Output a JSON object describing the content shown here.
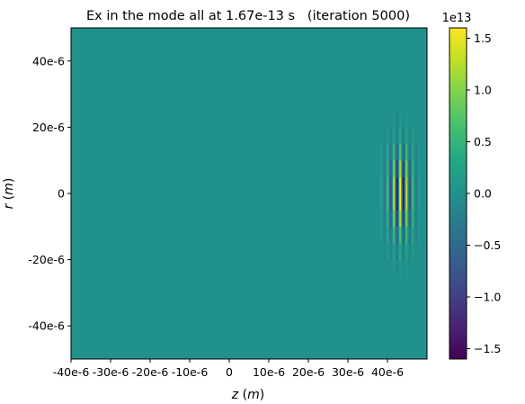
{
  "chart_data": {
    "type": "heatmap",
    "title": "Ex in the mode all at 1.67e-13 s   (iteration 5000)",
    "xlabel": "z (m)",
    "ylabel": "r (m)",
    "xlim": [
      -40,
      50
    ],
    "ylim": [
      -50,
      50
    ],
    "x_ticks": [
      -40,
      -30,
      -20,
      -10,
      0,
      10,
      20,
      30,
      40
    ],
    "x_tick_labels": [
      "-40e-6",
      "-30e-6",
      "-20e-6",
      "-10e-6",
      "0",
      "10e-6",
      "20e-6",
      "30e-6",
      "40e-6"
    ],
    "y_ticks": [
      40,
      20,
      0,
      -20,
      -40
    ],
    "y_tick_labels": [
      "40e-6",
      "20e-6",
      "0",
      "-20e-6",
      "-40e-6"
    ],
    "colorbar": {
      "colormap": "viridis",
      "range": [
        -1.6,
        1.6
      ],
      "offset_label": "1e13",
      "ticks": [
        1.5,
        1.0,
        0.5,
        0.0,
        -0.5,
        -1.0,
        -1.5
      ],
      "tick_labels": [
        "1.5",
        "1.0",
        "0.5",
        "0.0",
        "−0.5",
        "−1.0",
        "−1.5"
      ]
    },
    "background_color": "#21918c",
    "pulse": {
      "center_z": 43,
      "center_r": 0,
      "z_extent": [
        35,
        48
      ],
      "r_extent": [
        -30,
        30
      ],
      "peak_value": 1.6,
      "description": "oscillating laser field"
    }
  }
}
